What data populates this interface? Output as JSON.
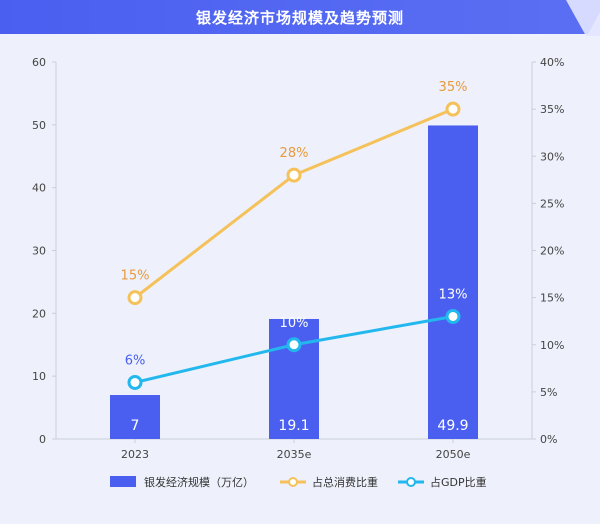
{
  "title": "银发经济市场规模及趋势预测",
  "colors": {
    "background": "#eef1fb",
    "title_bar": "#4a5ff0",
    "bar": "#4a5ff0",
    "consumption_line": "#f5c15a",
    "consumption_label": "#e99a3c",
    "gdp_line": "#22b8ee",
    "gdp_label_first": "#4a5ff0",
    "gdp_label": "#ffffff"
  },
  "chart_data": {
    "type": "bar",
    "title": "银发经济市场规模及趋势预测",
    "categories": [
      "2023",
      "2035e",
      "2050e"
    ],
    "series": [
      {
        "name": "银发经济规模（万亿）",
        "type": "bar",
        "axis": "left",
        "values": [
          7,
          19.1,
          49.9
        ],
        "labels": [
          "7",
          "19.1",
          "49.9"
        ]
      },
      {
        "name": "占总消费比重",
        "type": "line",
        "axis": "right",
        "values": [
          15,
          28,
          35
        ],
        "labels": [
          "15%",
          "28%",
          "35%"
        ]
      },
      {
        "name": "占GDP比重",
        "type": "line",
        "axis": "right",
        "values": [
          6,
          10,
          13
        ],
        "labels": [
          "6%",
          "10%",
          "13%"
        ]
      }
    ],
    "y_left": {
      "min": 0,
      "max": 60,
      "ticks": [
        "0",
        "10",
        "20",
        "30",
        "40",
        "50",
        "60"
      ]
    },
    "y_right": {
      "min": 0,
      "max": 40,
      "ticks": [
        "0%",
        "5%",
        "10%",
        "15%",
        "20%",
        "25%",
        "30%",
        "35%",
        "40%"
      ]
    },
    "grid": false,
    "legend_position": "bottom"
  }
}
